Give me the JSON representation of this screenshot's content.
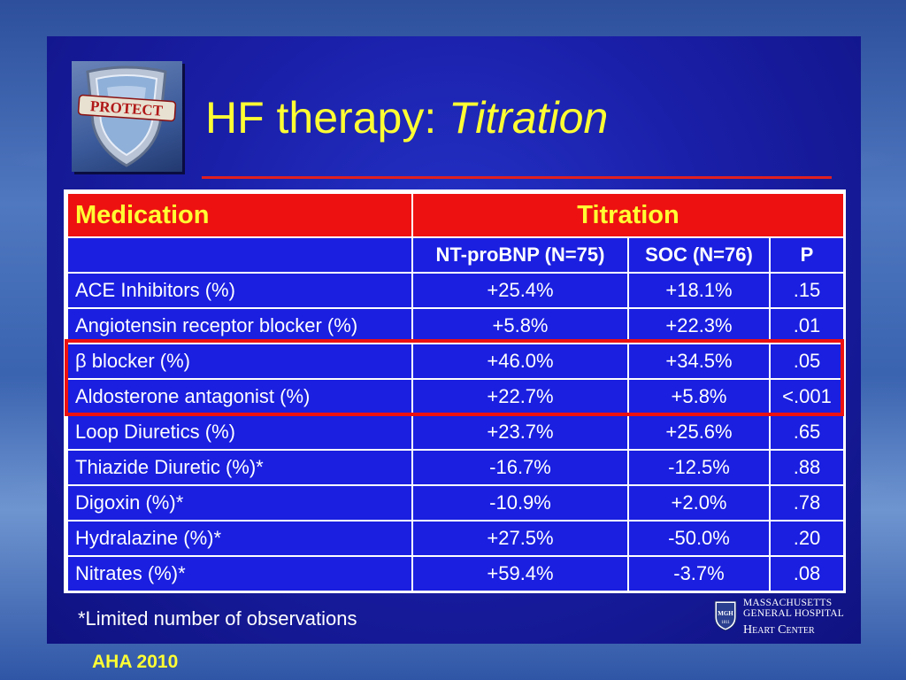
{
  "title": {
    "prefix": "HF therapy: ",
    "emphasis": "Titration"
  },
  "logo": {
    "text": "PROTECT",
    "icon": "shield-icon"
  },
  "table": {
    "header": {
      "medication": "Medication",
      "titration": "Titration"
    },
    "subheader": {
      "blank": "",
      "col1": "NT-proBNP (N=75)",
      "col2": "SOC (N=76)",
      "col3": "P"
    },
    "rows": [
      {
        "name": "ACE Inhibitors (%)",
        "ntprobnp": "+25.4%",
        "soc": "+18.1%",
        "p": ".15"
      },
      {
        "name": "Angiotensin receptor blocker (%)",
        "ntprobnp": "+5.8%",
        "soc": "+22.3%",
        "p": ".01"
      },
      {
        "name": "β blocker (%)",
        "ntprobnp": "+46.0%",
        "soc": "+34.5%",
        "p": ".05"
      },
      {
        "name": "Aldosterone antagonist (%)",
        "ntprobnp": "+22.7%",
        "soc": "+5.8%",
        "p": "<.001"
      },
      {
        "name": "Loop Diuretics (%)",
        "ntprobnp": "+23.7%",
        "soc": "+25.6%",
        "p": ".65"
      },
      {
        "name": "Thiazide Diuretic (%)*",
        "ntprobnp": "-16.7%",
        "soc": "-12.5%",
        "p": ".88"
      },
      {
        "name": "Digoxin (%)*",
        "ntprobnp": "-10.9%",
        "soc": "+2.0%",
        "p": ".78"
      },
      {
        "name": "Hydralazine (%)*",
        "ntprobnp": "+27.5%",
        "soc": "-50.0%",
        "p": ".20"
      },
      {
        "name": "Nitrates (%)*",
        "ntprobnp": "+59.4%",
        "soc": "-3.7%",
        "p": ".08"
      }
    ]
  },
  "footnote": "*Limited number of observations",
  "source": "AHA 2010",
  "mgh_logo": {
    "line1": "MASSACHUSETTS",
    "line2": "GENERAL HOSPITAL",
    "line3": "Heart Center",
    "shield_text": "MGH",
    "shield_year": "1811"
  },
  "colors": {
    "title": "#ffff33",
    "table_header_bg": "#ee1111",
    "table_body_bg": "#1a1fe0",
    "highlight_border": "#ee1111",
    "slide_bg": "#1a1fa8"
  }
}
